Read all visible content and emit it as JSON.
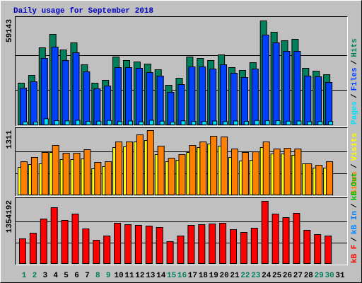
{
  "legend_separator": "/",
  "chart_data": [
    {
      "type": "bar",
      "title": "Daily usage for September 2018",
      "categories": [
        "1",
        "2",
        "3",
        "4",
        "5",
        "6",
        "7",
        "8",
        "9",
        "10",
        "11",
        "12",
        "13",
        "14",
        "15",
        "16",
        "17",
        "18",
        "19",
        "20",
        "21",
        "22",
        "23",
        "24",
        "25",
        "26",
        "27",
        "28",
        "29",
        "30",
        "31"
      ],
      "x_label_colors": [
        "#00805c",
        "#00805c",
        "#000000",
        "#000000",
        "#000000",
        "#000000",
        "#000000",
        "#00805c",
        "#00805c",
        "#000000",
        "#000000",
        "#000000",
        "#000000",
        "#000000",
        "#00805c",
        "#00805c",
        "#000000",
        "#000000",
        "#000000",
        "#000000",
        "#000000",
        "#00805c",
        "#00805c",
        "#000000",
        "#000000",
        "#000000",
        "#000000",
        "#000000",
        "#00805c",
        "#00805c",
        "#000000"
      ],
      "ylim": [
        0,
        59143
      ],
      "yticks": [
        59143
      ],
      "ygrid": [
        19714,
        39429
      ],
      "series": [
        {
          "name": "Hits",
          "color": "#00805c",
          "values": [
            23737,
            28161,
            43852,
            51497,
            42646,
            46669,
            34197,
            23737,
            25346,
            38623,
            36611,
            35807,
            34600,
            31381,
            22530,
            26553,
            38623,
            37818,
            36611,
            39830,
            32588,
            30979,
            35405,
            59143,
            52704,
            47877,
            48681,
            32186,
            30577,
            28565,
            null
          ]
        },
        {
          "name": "Files",
          "color": "#0040ff",
          "values": [
            20920,
            24540,
            37816,
            44253,
            36609,
            41035,
            30173,
            20517,
            22127,
            32586,
            32586,
            32184,
            29770,
            27759,
            18506,
            22931,
            32989,
            32989,
            31782,
            34196,
            29368,
            26954,
            31782,
            51092,
            46667,
            41839,
            41839,
            27759,
            27356,
            24138,
            null
          ]
        },
        {
          "name": "Pages",
          "color": "#00e0ff",
          "values": [
            1700,
            1600,
            3500,
            2400,
            2300,
            2600,
            2000,
            2100,
            2500,
            1900,
            2200,
            1800,
            2600,
            2100,
            1600,
            2300,
            2000,
            2000,
            2200,
            1900,
            2200,
            2000,
            2500,
            2400,
            2400,
            2100,
            2200,
            1800,
            1900,
            1900,
            null
          ]
        }
      ]
    },
    {
      "type": "bar",
      "ylim": [
        0,
        1311
      ],
      "yticks": [
        1311
      ],
      "ygrid": [
        437,
        874
      ],
      "series": [
        {
          "name": "Visits",
          "color": "#ffff00",
          "values": [
            562,
            619,
            634,
            864,
            720,
            720,
            734,
            533,
            576,
            965,
            979,
            1080,
            1109,
            821,
            677,
            706,
            864,
            965,
            1037,
            994,
            763,
            691,
            706,
            965,
            835,
            835,
            806,
            634,
            547,
            547,
            null
          ]
        },
        {
          "name": "Sites",
          "color": "#ff8000",
          "values": [
            677,
            763,
            864,
            1008,
            850,
            850,
            922,
            662,
            677,
            1080,
            1080,
            1224,
            1311,
            994,
            749,
            821,
            1008,
            1080,
            1195,
            1181,
            936,
            864,
            878,
            1080,
            936,
            950,
            936,
            634,
            605,
            677,
            null
          ]
        }
      ]
    },
    {
      "type": "bar",
      "ylim": [
        0,
        1354192
      ],
      "yticks": [
        1354192
      ],
      "ygrid": [
        451397,
        902795
      ],
      "series": [
        {
          "name": "kB Out",
          "color": "#00c000",
          "values": [
            null,
            null,
            null,
            null,
            null,
            null,
            null,
            null,
            null,
            null,
            null,
            null,
            null,
            null,
            null,
            null,
            null,
            null,
            null,
            null,
            null,
            null,
            null,
            null,
            null,
            null,
            null,
            null,
            null,
            null,
            null
          ]
        },
        {
          "name": "kB In",
          "color": "#0080ff",
          "values": [
            null,
            null,
            null,
            null,
            null,
            null,
            null,
            null,
            null,
            null,
            null,
            null,
            null,
            null,
            null,
            null,
            null,
            null,
            null,
            null,
            null,
            null,
            null,
            null,
            null,
            null,
            null,
            null,
            null,
            null,
            null
          ]
        },
        {
          "name": "kB F",
          "color": "#ff0000",
          "values": [
            538615,
            661727,
            969507,
            1215731,
            938729,
            1077230,
            754061,
            507837,
            600171,
            877173,
            846395,
            831006,
            815617,
            784839,
            477059,
            600171,
            831006,
            846395,
            861784,
            877173,
            738672,
            677116,
            769450,
            1354192,
            1077230,
            1000285,
            1092619,
            723283,
            630949,
            600171,
            null
          ]
        }
      ]
    }
  ]
}
